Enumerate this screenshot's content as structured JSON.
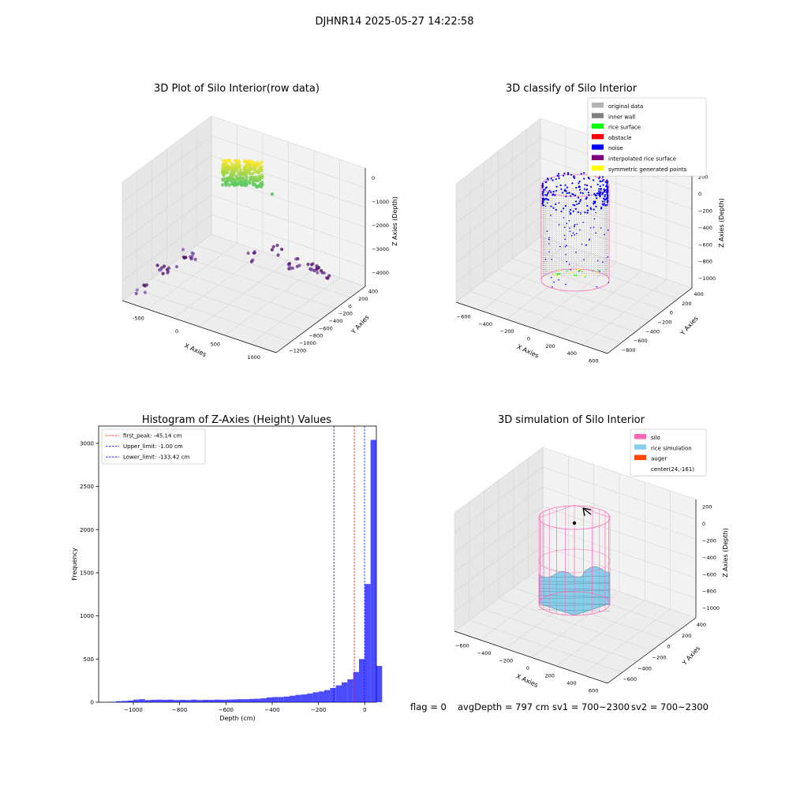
{
  "suptitle": "DJHNR14 2025-05-27 14:22:58",
  "footer": {
    "flag": "flag = 0",
    "avg_depth": "avgDepth = 797 cm",
    "sv1": "sv1 = 700~2300",
    "sv2": "sv2 = 700~2300"
  },
  "colors": {
    "silo_pink": "#ff69b4",
    "rice_blue": "#87ceeb",
    "hist_blue": "#0000ff",
    "noise_blue": "#0000ff",
    "inner_wall_gray": "#808080",
    "original_gray": "#b3b3b3",
    "rice_green": "#00ff00",
    "obstacle_red": "#ff0000",
    "interp_purple": "#800080",
    "symmetric_yellow": "#ffff00",
    "auger_orange": "#ff4500",
    "peak_red": "#ff0000",
    "limit_blue": "#0000ff"
  },
  "chart_data": [
    {
      "id": "raw",
      "type": "scatter",
      "projection": "3d",
      "title": "3D Plot of Silo Interior(row data)",
      "xlabel": "X Axies",
      "ylabel": "Y Axies",
      "zlabel": "Z Axies (Depth)",
      "xlim": [
        -900,
        1300
      ],
      "ylim": [
        -1250,
        450
      ],
      "zlim": [
        -4400,
        100
      ],
      "x_ticks": [
        "-500",
        "0",
        "500",
        "1000"
      ],
      "y_ticks": [
        "400",
        "200",
        "0",
        "−200",
        "−400",
        "−600",
        "−800",
        "−1000",
        "−1200"
      ],
      "z_ticks": [
        "0",
        "−1000",
        "−2000",
        "−3000",
        "−4000"
      ],
      "grid": true,
      "series": [
        {
          "points": [
            [
              -100,
              200,
              -100
            ],
            [
              0,
              200,
              -80
            ],
            [
              100,
              200,
              -90
            ],
            [
              200,
              150,
              -120
            ],
            [
              -100,
              0,
              -300
            ],
            [
              0,
              0,
              -350
            ],
            [
              100,
              0,
              -330
            ],
            [
              200,
              0,
              -400
            ],
            [
              -50,
              -100,
              -600
            ],
            [
              150,
              -100,
              -650
            ],
            [
              250,
              -150,
              -600
            ]
          ],
          "color_range": [
            "#fde725",
            "#5ec962"
          ]
        },
        {
          "points": [
            [
              -700,
              -900,
              -4300
            ],
            [
              -600,
              -800,
              -4200
            ],
            [
              -400,
              -600,
              -4100
            ],
            [
              -300,
              -500,
              -4050
            ],
            [
              0,
              -300,
              -4000
            ],
            [
              200,
              -200,
              -4000
            ],
            [
              400,
              -100,
              -4000
            ],
            [
              600,
              0,
              -4050
            ],
            [
              800,
              100,
              -4100
            ],
            [
              900,
              200,
              -4200
            ]
          ],
          "color_range": [
            "#440154",
            "#8b5fbf"
          ]
        }
      ]
    },
    {
      "id": "classify",
      "type": "scatter",
      "projection": "3d",
      "title": "3D classify of Silo Interior",
      "xlabel": "X Axies",
      "ylabel": "Y Axies",
      "zlabel": "Z Axies (Depth)",
      "xlim": [
        -650,
        650
      ],
      "ylim": [
        -850,
        450
      ],
      "zlim": [
        -1100,
        250
      ],
      "x_ticks": [
        "−600",
        "−400",
        "−200",
        "0",
        "200",
        "400",
        "600"
      ],
      "y_ticks": [
        "400",
        "200",
        "0",
        "−200",
        "−400",
        "−600",
        "−800"
      ],
      "z_ticks": [
        "200",
        "0",
        "−200",
        "−400",
        "−600",
        "−800",
        "−1000"
      ],
      "grid": true,
      "legend_position": "top-right",
      "legend": [
        {
          "label": "original data",
          "color": "#b3b3b3"
        },
        {
          "label": "inner wall",
          "color": "#808080"
        },
        {
          "label": "rice surface",
          "color": "#00ff00"
        },
        {
          "label": "obstacle",
          "color": "#ff0000"
        },
        {
          "label": "noise",
          "color": "#0000ff"
        },
        {
          "label": "interpolated rice surface",
          "color": "#800080"
        },
        {
          "label": "symmetric generated points",
          "color": "#ffff00"
        }
      ]
    },
    {
      "id": "hist",
      "type": "bar",
      "title": "Histogram of Z-Axies (Height) Values",
      "xlabel": "Depth (cm)",
      "ylabel": "Frequency",
      "xlim": [
        -1150,
        50
      ],
      "ylim": [
        0,
        3200
      ],
      "x_ticks": [
        -1000,
        -800,
        -600,
        -400,
        -200,
        0
      ],
      "x_tick_labels": [
        "−1000",
        "−800",
        "−600",
        "−400",
        "−200",
        "0"
      ],
      "y_ticks": [
        0,
        500,
        1000,
        1500,
        2000,
        2500,
        3000
      ],
      "bin_width": 25,
      "bin_start": -1100,
      "values": [
        5,
        12,
        15,
        20,
        30,
        35,
        25,
        28,
        30,
        28,
        30,
        25,
        28,
        25,
        30,
        25,
        28,
        28,
        30,
        28,
        30,
        32,
        35,
        35,
        38,
        40,
        45,
        55,
        60,
        60,
        65,
        75,
        85,
        90,
        100,
        115,
        125,
        140,
        165,
        195,
        230,
        265,
        350,
        500,
        1370,
        3040,
        420
      ],
      "color": "#0000ff",
      "legend_position": "top-left",
      "vlines": [
        {
          "x": -45.14,
          "label": "first_peak: -45.14 cm",
          "color": "#ff0000"
        },
        {
          "x": -1.0,
          "label": "Upper_limit: -1.00 cm",
          "color": "#0000ff"
        },
        {
          "x": -133.42,
          "label": "Lower_limit: -133.42 cm",
          "color": "#0000ff"
        }
      ]
    },
    {
      "id": "sim",
      "type": "surface",
      "projection": "3d",
      "title": "3D simulation of Silo Interior",
      "xlabel": "X Axies",
      "ylabel": "Y Axies",
      "zlabel": "Z Axies (Depth)",
      "xlim": [
        -650,
        650
      ],
      "ylim": [
        -850,
        450
      ],
      "zlim": [
        -1100,
        250
      ],
      "x_ticks": [
        "−600",
        "−400",
        "−200",
        "0",
        "200",
        "400",
        "600"
      ],
      "y_ticks": [
        "400",
        "200",
        "0",
        "−200",
        "−400",
        "−600"
      ],
      "z_ticks": [
        "200",
        "0",
        "−200",
        "−400",
        "−600",
        "−800",
        "−1000"
      ],
      "grid": true,
      "legend_position": "top-right",
      "legend": [
        {
          "label": "silo",
          "color": "#ff69b4"
        },
        {
          "label": "rice simulation",
          "color": "#87ceeb"
        },
        {
          "label": "auger",
          "color": "#ff4500"
        },
        {
          "label": "center(24,-161)",
          "color": ""
        }
      ]
    }
  ]
}
